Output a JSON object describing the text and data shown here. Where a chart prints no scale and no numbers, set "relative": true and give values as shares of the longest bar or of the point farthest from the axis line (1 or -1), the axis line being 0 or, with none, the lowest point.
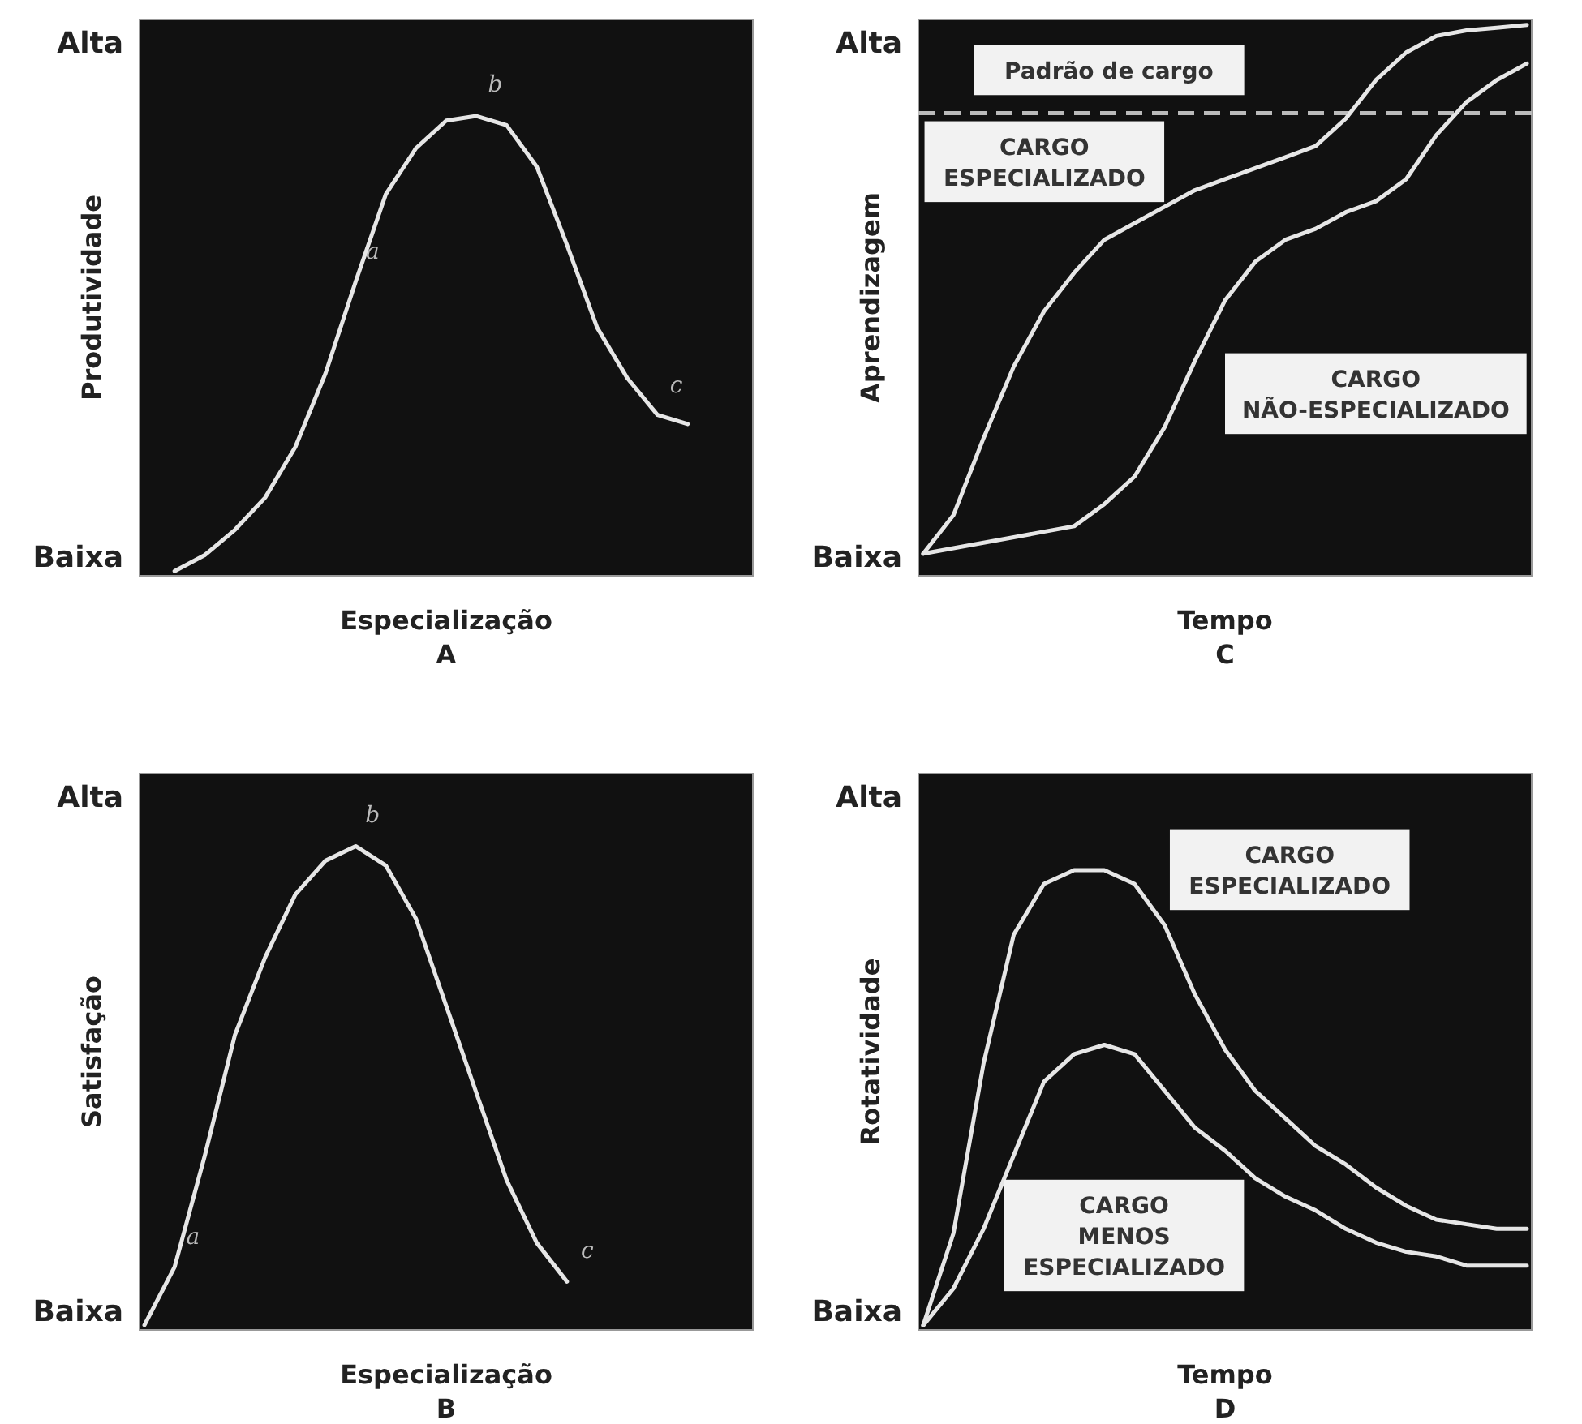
{
  "chart_data": [
    {
      "type": "line",
      "title": "A",
      "xlabel": "Especialização",
      "ylabel": "Produtividade",
      "relative": true,
      "annotations": [
        "Alta",
        "Baixa",
        "a",
        "b",
        "c"
      ],
      "categories": [
        null,
        null,
        null,
        null,
        null,
        null,
        null,
        null,
        null,
        null,
        null,
        null,
        null,
        null,
        null,
        null,
        null,
        null,
        null,
        null,
        null
      ],
      "series": [
        {
          "color": "#e6e6e6",
          "values": [
            null,
            0.01,
            0.045,
            0.1,
            0.17,
            0.28,
            0.44,
            0.64,
            0.83,
            0.93,
            0.99,
            1,
            0.98,
            0.89,
            0.72,
            0.54,
            0.43,
            0.35,
            0.33,
            null,
            null
          ]
        }
      ]
    },
    {
      "type": "line",
      "title": "C",
      "xlabel": "Tempo",
      "ylabel": "Aprendizagem",
      "relative": true,
      "annotations": [
        "Alta",
        "Baixa"
      ],
      "categories": [
        null,
        null,
        null,
        null,
        null,
        null,
        null,
        null,
        null,
        null,
        null,
        null,
        null,
        null,
        null,
        null,
        null,
        null,
        null,
        null,
        null
      ],
      "series": [
        {
          "name": "CARGO ESPECIALIZADO",
          "color": "#e6e6e6",
          "values": [
            0.04,
            0.11,
            0.25,
            0.38,
            0.48,
            0.55,
            0.61,
            0.64,
            0.67,
            0.7,
            0.72,
            0.74,
            0.76,
            0.78,
            0.83,
            0.9,
            0.95,
            0.98,
            0.99,
            0.995,
            1
          ]
        },
        {
          "name": "CARGO NÃO-ESPECIALIZADO",
          "color": "#e6e6e6",
          "values": [
            0.04,
            0.05,
            0.06,
            0.07,
            0.08,
            0.09,
            0.13,
            0.18,
            0.27,
            0.39,
            0.5,
            0.57,
            0.61,
            0.63,
            0.66,
            0.68,
            0.72,
            0.8,
            0.86,
            0.9,
            0.93
          ]
        }
      ],
      "ref_lines": [
        {
          "axis": "y",
          "value": 0.84,
          "label": "Padrão de cargo",
          "color": "#bbbbbb",
          "line_style": "dashed"
        }
      ]
    },
    {
      "type": "line",
      "title": "B",
      "xlabel": "Especialização",
      "ylabel": "Satisfação",
      "relative": true,
      "annotations": [
        "Alta",
        "Baixa",
        "a",
        "b",
        "c"
      ],
      "categories": [
        null,
        null,
        null,
        null,
        null,
        null,
        null,
        null,
        null,
        null,
        null,
        null,
        null,
        null,
        null,
        null,
        null,
        null,
        null,
        null,
        null
      ],
      "series": [
        {
          "color": "#e6e6e6",
          "values": [
            0.01,
            0.13,
            0.36,
            0.61,
            0.77,
            0.9,
            0.97,
            1,
            0.96,
            0.85,
            0.67,
            0.49,
            0.31,
            0.18,
            0.1,
            null,
            null,
            null,
            null,
            null,
            null
          ]
        }
      ]
    },
    {
      "type": "line",
      "title": "D",
      "xlabel": "Tempo",
      "ylabel": "Rotatividade",
      "relative": true,
      "annotations": [
        "Alta",
        "Baixa"
      ],
      "categories": [
        null,
        null,
        null,
        null,
        null,
        null,
        null,
        null,
        null,
        null,
        null,
        null,
        null,
        null,
        null,
        null,
        null,
        null,
        null,
        null,
        null
      ],
      "series": [
        {
          "name": "CARGO ESPECIALIZADO",
          "color": "#e6e6e6",
          "values": [
            0.01,
            0.21,
            0.58,
            0.86,
            0.97,
            1,
            1,
            0.97,
            0.88,
            0.73,
            0.61,
            0.52,
            0.46,
            0.4,
            0.36,
            0.31,
            0.27,
            0.24,
            0.23,
            0.22,
            0.22
          ]
        },
        {
          "name": "CARGO MENOS ESPECIALIZADO",
          "color": "#e6e6e6",
          "values": [
            0.01,
            0.09,
            0.22,
            0.38,
            0.54,
            0.6,
            0.62,
            0.6,
            0.52,
            0.44,
            0.39,
            0.33,
            0.29,
            0.26,
            0.22,
            0.19,
            0.17,
            0.16,
            0.14,
            0.14,
            0.14
          ]
        }
      ]
    }
  ]
}
